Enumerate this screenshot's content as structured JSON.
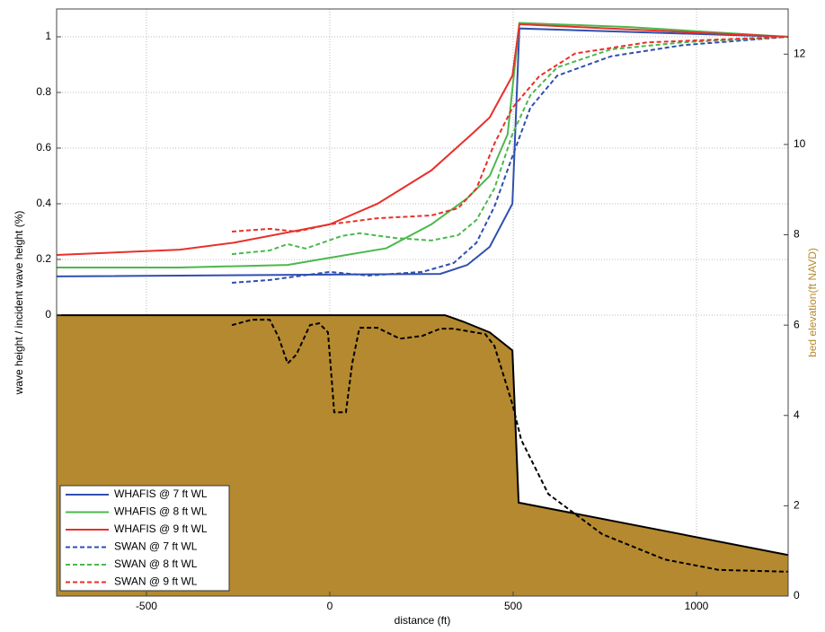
{
  "chart_data": {
    "type": "line",
    "xlabel": "distance (ft)",
    "ylabel": "wave height / incident wave height (%)",
    "y2label": "bed elevation(ft NAVD)",
    "y2label_color": "#b8892f",
    "xlim": [
      -745,
      1250
    ],
    "xticks": [
      -500,
      0,
      500,
      1000
    ],
    "ylim": [
      -1.01,
      1.1
    ],
    "yticks": [
      0,
      0.2,
      0.4,
      0.6,
      0.8,
      1
    ],
    "y2lim": [
      0,
      13
    ],
    "y2ticks": [
      0,
      2,
      4,
      6,
      8,
      10,
      12
    ],
    "grid": true,
    "legend": "lower left",
    "series": [
      {
        "axis": "y2",
        "color": "#000000",
        "fill": "#b5892f",
        "style": "solid",
        "x": [
          -745,
          314,
          363,
          436,
          498,
          515,
          1250
        ],
        "values": [
          6.22,
          6.22,
          6.08,
          5.84,
          5.44,
          2.07,
          0.91
        ]
      },
      {
        "axis": "y2",
        "color": "#000000",
        "style": "dashed",
        "x": [
          -267,
          -213,
          -164,
          -140,
          -115,
          -91,
          -54,
          -29,
          -5,
          7,
          12,
          44,
          61,
          81,
          130,
          191,
          252,
          301,
          338,
          424,
          449,
          498,
          522,
          596,
          743,
          914,
          1061,
          1250
        ],
        "values": [
          6.0,
          6.12,
          6.12,
          5.74,
          5.15,
          5.35,
          6.0,
          6.04,
          5.84,
          4.61,
          4.07,
          4.07,
          5.15,
          5.94,
          5.94,
          5.7,
          5.76,
          5.92,
          5.92,
          5.8,
          5.54,
          4.25,
          3.46,
          2.26,
          1.37,
          0.81,
          0.58,
          0.54
        ]
      },
      {
        "name": "WHAFIS @ 7 ft WL",
        "color": "#2f4fb0",
        "style": "solid",
        "x": [
          -745,
          301,
          375,
          436,
          498,
          517,
          1250
        ],
        "values": [
          0.139,
          0.148,
          0.18,
          0.245,
          0.4,
          1.03,
          1.0
        ]
      },
      {
        "name": "WHAFIS @ 8 ft WL",
        "color": "#4cb84c",
        "style": "solid",
        "x": [
          -745,
          -409,
          -115,
          0,
          154,
          277,
          375,
          436,
          485,
          517,
          816,
          1250
        ],
        "values": [
          0.171,
          0.171,
          0.18,
          0.206,
          0.24,
          0.326,
          0.42,
          0.5,
          0.65,
          1.05,
          1.035,
          1.0
        ]
      },
      {
        "name": "WHAFIS @ 9 ft WL",
        "color": "#e8302a",
        "style": "solid",
        "x": [
          -745,
          -409,
          -262,
          0,
          130,
          277,
          387,
          436,
          498,
          517,
          1250
        ],
        "values": [
          0.216,
          0.235,
          0.26,
          0.326,
          0.4,
          0.52,
          0.65,
          0.71,
          0.86,
          1.045,
          1.0
        ]
      },
      {
        "name": "SWAN @ 7 ft WL",
        "color": "#2f4fb0",
        "style": "dashed",
        "x": [
          -267,
          -164,
          -91,
          0,
          105,
          252,
          338,
          400,
          449,
          498,
          547,
          620,
          767,
          963,
          1250
        ],
        "values": [
          0.116,
          0.126,
          0.139,
          0.155,
          0.142,
          0.155,
          0.187,
          0.26,
          0.39,
          0.57,
          0.745,
          0.86,
          0.93,
          0.97,
          1.0
        ]
      },
      {
        "name": "SWAN @ 8 ft WL",
        "color": "#4cb84c",
        "style": "dashed",
        "x": [
          -267,
          -164,
          -115,
          -66,
          32,
          81,
          179,
          277,
          350,
          400,
          449,
          498,
          547,
          620,
          767,
          963,
          1250
        ],
        "values": [
          0.219,
          0.232,
          0.255,
          0.239,
          0.284,
          0.294,
          0.277,
          0.268,
          0.287,
          0.342,
          0.455,
          0.65,
          0.79,
          0.89,
          0.955,
          0.98,
          1.0
        ]
      },
      {
        "name": "SWAN @ 9 ft WL",
        "color": "#e8302a",
        "style": "dashed",
        "x": [
          -267,
          -164,
          -91,
          0,
          130,
          277,
          350,
          400,
          449,
          498,
          571,
          669,
          865,
          1250
        ],
        "values": [
          0.3,
          0.31,
          0.3,
          0.326,
          0.348,
          0.358,
          0.384,
          0.455,
          0.616,
          0.745,
          0.858,
          0.94,
          0.98,
          1.0
        ]
      }
    ]
  }
}
